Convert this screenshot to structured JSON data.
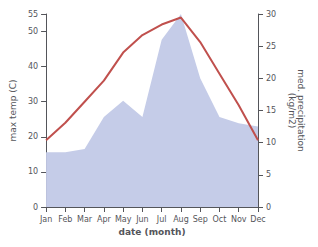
{
  "chart_data": {
    "type": "line",
    "categories": [
      "Jan",
      "Feb",
      "Mar",
      "Apr",
      "May",
      "Jun",
      "Jul",
      "Aug",
      "Sep",
      "Oct",
      "Nov",
      "Dec"
    ],
    "series": [
      {
        "type": "area",
        "axis": "y2",
        "color": "#c5cce8",
        "values": [
          8.5,
          8.5,
          9.0,
          14.0,
          16.5,
          14.0,
          26.0,
          30.0,
          20.0,
          14.0,
          13.0,
          12.5
        ]
      },
      {
        "type": "line",
        "color": "#c0504d",
        "values": [
          19,
          24,
          30,
          36,
          44,
          49,
          52,
          54,
          47,
          38,
          29,
          19
        ]
      }
    ],
    "xlabel": "date (month)",
    "ylabel": "max temp (C)",
    "y2label": "med. precipitation\n(kg/m2)",
    "ylim": [
      0,
      55
    ],
    "yticks": [
      0,
      10,
      20,
      30,
      40,
      50
    ],
    "y2lim": [
      0,
      30
    ],
    "y2ticks": [
      0,
      5,
      10,
      15,
      20,
      25,
      30
    ],
    "grid": false
  }
}
